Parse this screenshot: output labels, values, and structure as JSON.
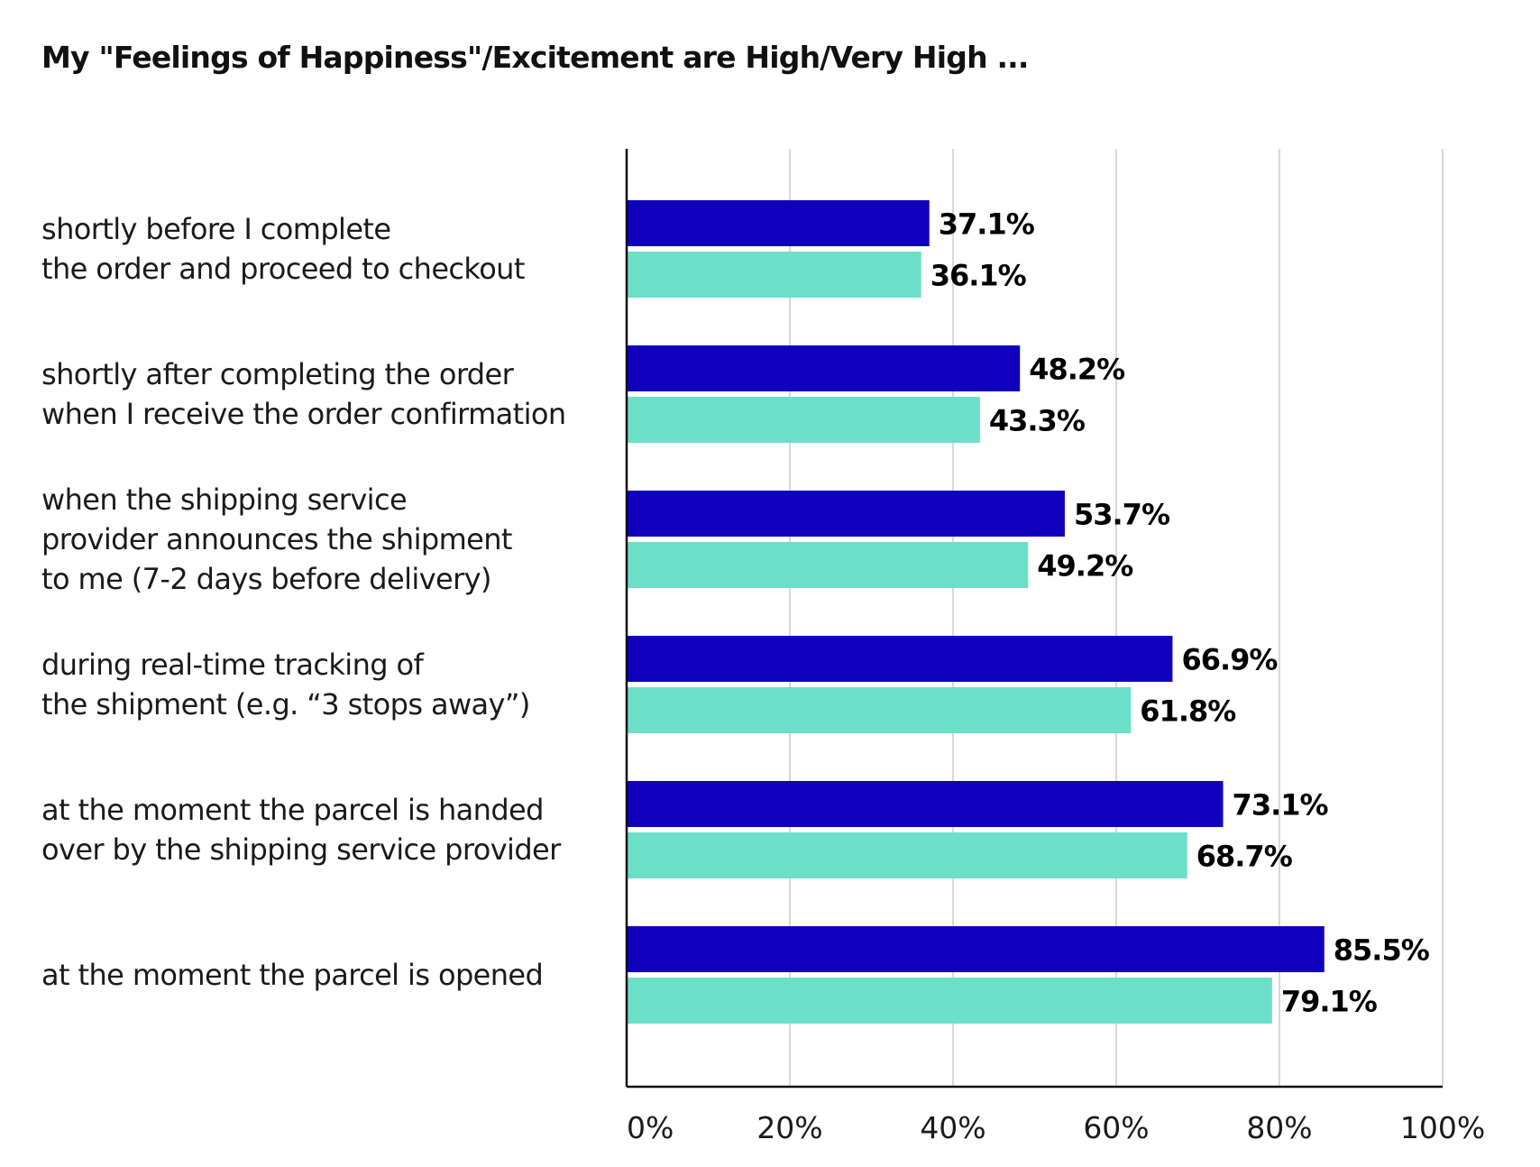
{
  "chart_data": {
    "type": "bar",
    "orientation": "horizontal",
    "title": "My \"Feelings of Happiness\"/Excitement are High/Very High ...",
    "categories": [
      [
        "shortly before I complete",
        "the order and proceed to checkout"
      ],
      [
        "shortly after completing the order",
        "when I receive the order confirmation"
      ],
      [
        "when the shipping service",
        "provider announces the shipment",
        "to me (7-2 days before delivery)"
      ],
      [
        "during real-time tracking of",
        "the shipment (e.g. “3 stops away”)"
      ],
      [
        "at the moment the parcel is handed",
        "over by the shipping service provider"
      ],
      [
        "at the moment the parcel is opened"
      ]
    ],
    "series": [
      {
        "values": [
          37.1,
          48.2,
          53.7,
          66.9,
          73.1,
          85.5
        ],
        "labels": [
          "37.1%",
          "48.2%",
          "53.7%",
          "66.9%",
          "73.1%",
          "85.5%"
        ],
        "color": "#1100bb"
      },
      {
        "values": [
          36.1,
          43.3,
          49.2,
          61.8,
          68.7,
          79.1
        ],
        "labels": [
          "36.1%",
          "43.3%",
          "49.2%",
          "61.8%",
          "68.7%",
          "79.1%"
        ],
        "color": "#6cdfc8"
      }
    ],
    "xlim": [
      0,
      100
    ],
    "xticks": [
      0,
      20,
      40,
      60,
      80,
      100
    ],
    "xtick_labels": [
      "0%",
      "20%",
      "40%",
      "60%",
      "80%",
      "100%"
    ],
    "grid": "vertical",
    "legend": "none"
  }
}
